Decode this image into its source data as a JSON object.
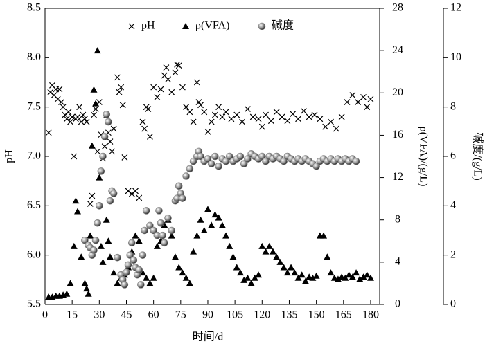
{
  "chart_data": {
    "type": "scatter",
    "xlabel": "时间/d",
    "ylabel": "pH",
    "y2label": "ρ(VFA)/(g/L)",
    "y3label": "碱度/(g/L)",
    "xlim": [
      0,
      185
    ],
    "xticks": [
      0,
      15,
      30,
      45,
      60,
      75,
      90,
      105,
      120,
      135,
      150,
      165,
      180
    ],
    "ylim": [
      5.5,
      8.5
    ],
    "yticks": [
      5.5,
      {
        "value": 6,
        "label": "6.0"
      },
      6.5,
      {
        "value": 7,
        "label": "7.0"
      },
      7.5,
      {
        "value": 8,
        "label": "8.0"
      },
      8.5
    ],
    "y2lim": [
      0,
      28
    ],
    "y2ticks": [
      0,
      4,
      8,
      12,
      16,
      20,
      24,
      28
    ],
    "y3lim": [
      0,
      12
    ],
    "y3ticks": [
      0,
      2,
      4,
      6,
      8,
      10,
      12
    ],
    "grid": false,
    "legend": "top",
    "series": [
      {
        "name": "pH",
        "color": "#000000",
        "marker": "x",
        "axis": "y",
        "x": [
          2,
          3,
          4,
          5,
          6,
          7,
          8,
          9,
          10,
          11,
          12,
          13,
          14,
          15,
          16,
          17,
          18,
          19,
          20,
          21,
          22,
          23,
          25,
          26,
          27,
          28,
          29,
          30,
          31,
          32,
          33,
          34,
          35,
          36,
          37,
          38,
          40,
          41,
          42,
          43,
          44,
          46,
          48,
          50,
          52,
          54,
          55,
          56,
          57,
          58,
          60,
          62,
          64,
          66,
          67,
          68,
          70,
          72,
          73,
          74,
          76,
          78,
          80,
          82,
          84,
          85,
          86,
          88,
          90,
          92,
          94,
          96,
          98,
          100,
          103,
          106,
          109,
          112,
          115,
          118,
          120,
          122,
          125,
          128,
          131,
          134,
          137,
          140,
          143,
          146,
          149,
          152,
          155,
          158,
          161,
          164,
          167,
          170,
          173,
          176,
          178,
          180
        ],
        "values": [
          7.24,
          7.65,
          7.72,
          7.62,
          7.68,
          7.58,
          7.68,
          7.55,
          7.5,
          7.42,
          7.38,
          7.45,
          7.35,
          7.4,
          7.0,
          7.38,
          7.4,
          7.5,
          7.35,
          7.42,
          7.38,
          7.35,
          6.52,
          6.6,
          7.42,
          7.48,
          7.05,
          7.55,
          7.22,
          6.98,
          7.1,
          7.42,
          7.24,
          7.15,
          7.05,
          7.28,
          7.8,
          7.65,
          7.7,
          7.52,
          6.99,
          6.65,
          6.62,
          6.65,
          6.58,
          7.35,
          7.28,
          7.5,
          7.48,
          7.2,
          7.7,
          7.6,
          7.68,
          7.82,
          7.9,
          7.78,
          7.65,
          7.85,
          7.93,
          7.92,
          7.7,
          7.5,
          7.45,
          7.35,
          7.75,
          7.55,
          7.52,
          7.45,
          7.25,
          7.35,
          7.42,
          7.5,
          7.4,
          7.45,
          7.38,
          7.42,
          7.35,
          7.48,
          7.4,
          7.38,
          7.3,
          7.42,
          7.36,
          7.45,
          7.4,
          7.36,
          7.43,
          7.38,
          7.46,
          7.4,
          7.42,
          7.38,
          7.3,
          7.35,
          7.28,
          7.4,
          7.55,
          7.62,
          7.55,
          7.6,
          7.5,
          7.58
        ]
      },
      {
        "name": "ρ(VFA)",
        "color": "#000000",
        "marker": "triangle",
        "axis": "y2",
        "x": [
          2,
          4,
          6,
          8,
          10,
          12,
          14,
          16,
          17,
          18,
          20,
          22,
          23,
          24,
          25,
          26,
          27,
          28,
          29,
          30,
          31,
          32,
          34,
          35,
          36,
          38,
          40,
          42,
          44,
          46,
          48,
          50,
          52,
          54,
          56,
          58,
          60,
          62,
          64,
          66,
          68,
          70,
          72,
          74,
          76,
          78,
          80,
          82,
          84,
          86,
          88,
          90,
          92,
          94,
          96,
          98,
          100,
          102,
          104,
          106,
          108,
          110,
          112,
          114,
          116,
          118,
          120,
          122,
          124,
          126,
          128,
          130,
          132,
          134,
          136,
          138,
          140,
          142,
          144,
          146,
          148,
          150,
          152,
          154,
          156,
          158,
          160,
          162,
          164,
          166,
          168,
          170,
          172,
          174,
          176,
          178,
          180
        ],
        "values": [
          0.7,
          0.7,
          0.8,
          0.8,
          0.9,
          1.0,
          2.0,
          5.5,
          9.8,
          8.8,
          4.5,
          2.0,
          1.5,
          1.0,
          6.5,
          15.0,
          20.3,
          19.0,
          24.0,
          12.0,
          5.5,
          4.0,
          8.0,
          6.0,
          4.5,
          3.0,
          2.0,
          2.5,
          2.8,
          3.5,
          5.0,
          6.5,
          6.0,
          3.0,
          2.5,
          2.0,
          2.5,
          5.5,
          6.0,
          7.5,
          8.0,
          6.5,
          4.5,
          3.5,
          3.0,
          2.5,
          2.0,
          5.0,
          6.5,
          8.0,
          7.0,
          9.0,
          7.5,
          8.5,
          8.2,
          7.5,
          6.5,
          5.5,
          4.5,
          3.5,
          3.0,
          2.3,
          2.5,
          2.0,
          2.5,
          2.8,
          5.5,
          5.0,
          5.5,
          5.0,
          4.5,
          4.0,
          3.5,
          3.0,
          3.5,
          3.0,
          2.5,
          2.8,
          2.2,
          2.6,
          2.5,
          2.7,
          6.5,
          6.5,
          4.5,
          3.0,
          2.5,
          2.4,
          2.6,
          2.5,
          2.8,
          2.6,
          3.0,
          2.4,
          2.6,
          2.8,
          2.5
        ]
      },
      {
        "name": "碱度",
        "color": "#808080",
        "marker": "sphere",
        "axis": "y3",
        "x": [
          22,
          24,
          25,
          26,
          27,
          28,
          29,
          30,
          31,
          32,
          33,
          34,
          35,
          36,
          37,
          38,
          40,
          42,
          43,
          44,
          45,
          46,
          47,
          48,
          49,
          50,
          51,
          52,
          53,
          54,
          55,
          56,
          58,
          60,
          62,
          63,
          64,
          65,
          66,
          68,
          70,
          72,
          73,
          74,
          75,
          76,
          78,
          80,
          82,
          84,
          85,
          86,
          88,
          90,
          92,
          94,
          96,
          98,
          100,
          102,
          104,
          106,
          108,
          110,
          112,
          114,
          116,
          118,
          120,
          122,
          124,
          126,
          128,
          130,
          132,
          134,
          136,
          138,
          140,
          142,
          144,
          146,
          148,
          150,
          152,
          154,
          156,
          158,
          160,
          162,
          164,
          166,
          168,
          170,
          172
        ],
        "values": [
          2.6,
          2.4,
          2.3,
          2.0,
          2.2,
          2.6,
          3.3,
          4.0,
          5.4,
          6.0,
          6.8,
          7.7,
          7.4,
          4.2,
          4.6,
          4.5,
          1.9,
          1.2,
          1.0,
          0.8,
          1.3,
          1.6,
          2.0,
          2.5,
          1.8,
          1.5,
          1.2,
          1.4,
          0.8,
          2.0,
          3.0,
          3.8,
          3.2,
          3.0,
          2.8,
          3.8,
          3.3,
          2.8,
          2.5,
          3.5,
          3.0,
          4.2,
          4.3,
          4.8,
          4.5,
          4.3,
          5.2,
          5.5,
          5.8,
          6.0,
          6.2,
          6.0,
          5.8,
          5.9,
          5.7,
          6.0,
          5.6,
          5.9,
          5.8,
          6.0,
          5.8,
          5.9,
          6.0,
          5.7,
          5.9,
          6.1,
          6.0,
          5.9,
          6.0,
          5.8,
          6.0,
          5.9,
          6.0,
          5.9,
          5.8,
          6.0,
          5.9,
          5.8,
          5.9,
          5.8,
          5.9,
          5.8,
          5.7,
          5.6,
          5.8,
          5.9,
          5.8,
          5.9,
          5.8,
          5.9,
          5.8,
          5.9,
          5.8,
          5.9,
          5.8
        ]
      }
    ]
  }
}
